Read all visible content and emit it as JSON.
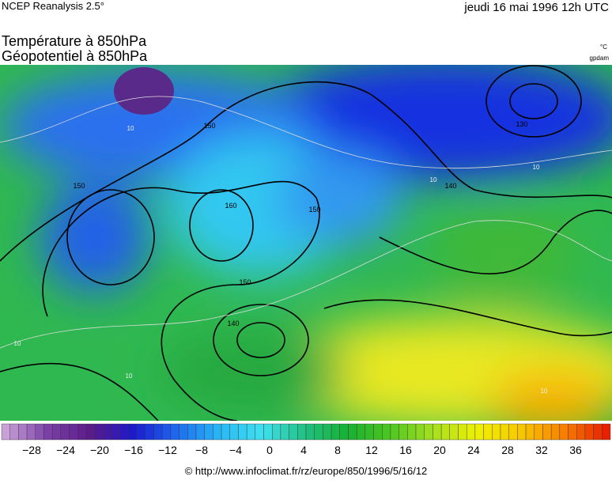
{
  "header": {
    "source": "NCEP Reanalysis 2.5°",
    "date": "jeudi 16 mai 1996 12h UTC"
  },
  "title": {
    "line1": "Température à 850hPa",
    "line2": "Géopotentiel à 850hPa"
  },
  "units": {
    "temperature": "°C",
    "geopotential": "gpdam"
  },
  "contour_labels": [
    "150",
    "150",
    "160",
    "150",
    "150",
    "140",
    "140",
    "130",
    "10",
    "10",
    "10",
    "10",
    "10",
    "10"
  ],
  "colorbar": {
    "ticks": [
      "−28",
      "−24",
      "−20",
      "−16",
      "−12",
      "−8",
      "−4",
      "0",
      "4",
      "8",
      "12",
      "16",
      "20",
      "24",
      "28",
      "32",
      "36"
    ],
    "colors": [
      "#c9a0d8",
      "#7a3fa6",
      "#5a1a8a",
      "#1a1ad0",
      "#1e6bf0",
      "#28b8f5",
      "#40e0f0",
      "#20c080",
      "#18b030",
      "#50c820",
      "#a8e020",
      "#f0f000",
      "#f8c800",
      "#f88000",
      "#e82000"
    ]
  },
  "footer": "© http://www.infoclimat.fr/rz/europe/850/1996/5/16/12"
}
